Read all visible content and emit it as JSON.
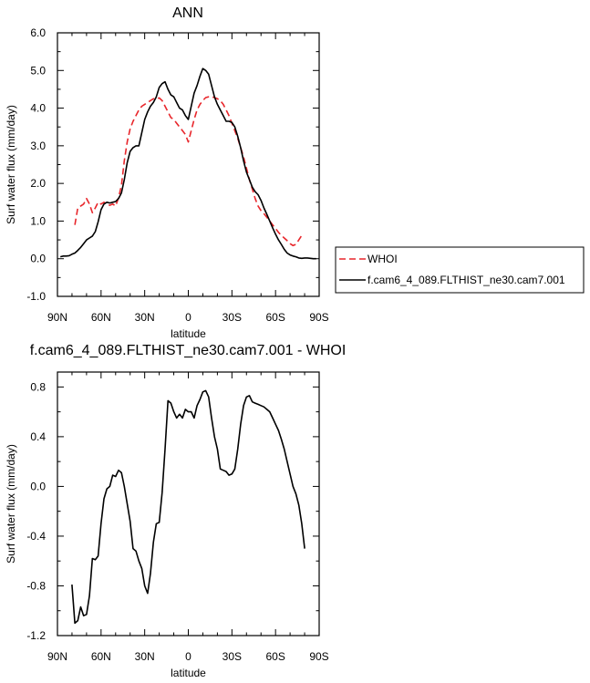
{
  "chart_data": [
    {
      "type": "line",
      "title": "ANN",
      "xlabel": "latitude",
      "ylabel": "Surf water flux (mm/day)",
      "xlim": [
        90,
        -90
      ],
      "ylim": [
        -1.0,
        6.0
      ],
      "x_ticks": [
        90,
        60,
        30,
        0,
        -30,
        -60,
        -90
      ],
      "x_tick_labels": [
        "90N",
        "60N",
        "30N",
        "0",
        "30S",
        "60S",
        "90S"
      ],
      "y_ticks": [
        -1,
        0,
        1,
        2,
        3,
        4,
        5,
        6
      ],
      "y_tick_labels": [
        "-1.0",
        "0.0",
        "1.0",
        "2.0",
        "3.0",
        "4.0",
        "5.0",
        "6.0"
      ],
      "grid": false,
      "legend_position": "outside-right",
      "series": [
        {
          "name": "WHOI",
          "color": "#e8262b",
          "dash": "dashed",
          "x": [
            78,
            76,
            74,
            72,
            70,
            68,
            66,
            64,
            62,
            60,
            58,
            56,
            54,
            52,
            50,
            48,
            46,
            44,
            42,
            40,
            38,
            36,
            34,
            32,
            30,
            28,
            26,
            24,
            22,
            20,
            18,
            16,
            14,
            12,
            10,
            8,
            6,
            4,
            2,
            0,
            -2,
            -4,
            -6,
            -8,
            -10,
            -12,
            -14,
            -16,
            -18,
            -20,
            -22,
            -24,
            -26,
            -28,
            -30,
            -32,
            -34,
            -36,
            -38,
            -40,
            -42,
            -44,
            -46,
            -48,
            -50,
            -52,
            -54,
            -56,
            -58,
            -60,
            -62,
            -64,
            -66,
            -68,
            -70,
            -72,
            -74,
            -76,
            -78
          ],
          "y": [
            0.9,
            1.35,
            1.4,
            1.45,
            1.6,
            1.45,
            1.22,
            1.35,
            1.5,
            1.45,
            1.5,
            1.45,
            1.42,
            1.45,
            1.4,
            1.62,
            1.95,
            2.6,
            3.1,
            3.45,
            3.65,
            3.8,
            3.95,
            4.05,
            4.1,
            4.15,
            4.2,
            4.25,
            4.25,
            4.27,
            4.2,
            4.05,
            3.9,
            3.75,
            3.7,
            3.6,
            3.5,
            3.4,
            3.3,
            3.1,
            3.4,
            3.7,
            3.95,
            4.1,
            4.2,
            4.28,
            4.3,
            4.3,
            4.28,
            4.25,
            4.2,
            4.1,
            3.95,
            3.8,
            3.6,
            3.4,
            3.2,
            2.95,
            2.7,
            2.4,
            2.1,
            1.85,
            1.6,
            1.4,
            1.28,
            1.2,
            1.1,
            1.0,
            0.9,
            0.8,
            0.7,
            0.62,
            0.55,
            0.48,
            0.4,
            0.35,
            0.38,
            0.5,
            0.62
          ]
        },
        {
          "name": "f.cam6_4_089.FLTHIST_ne30.cam7.001",
          "color": "#000000",
          "dash": "solid",
          "x": [
            88,
            86,
            84,
            82,
            80,
            78,
            76,
            74,
            72,
            70,
            68,
            66,
            64,
            62,
            60,
            58,
            56,
            54,
            52,
            50,
            48,
            46,
            44,
            42,
            40,
            38,
            36,
            34,
            32,
            30,
            28,
            26,
            24,
            22,
            20,
            18,
            16,
            14,
            12,
            10,
            8,
            6,
            4,
            2,
            0,
            -2,
            -4,
            -6,
            -8,
            -10,
            -12,
            -14,
            -16,
            -18,
            -20,
            -22,
            -24,
            -26,
            -28,
            -30,
            -32,
            -34,
            -36,
            -38,
            -40,
            -42,
            -44,
            -46,
            -48,
            -50,
            -52,
            -54,
            -56,
            -58,
            -60,
            -62,
            -64,
            -66,
            -68,
            -70,
            -72,
            -74,
            -76,
            -78,
            -80,
            -82,
            -84,
            -86,
            -88
          ],
          "y": [
            0.05,
            0.07,
            0.07,
            0.08,
            0.12,
            0.15,
            0.22,
            0.3,
            0.4,
            0.5,
            0.55,
            0.6,
            0.72,
            0.98,
            1.3,
            1.45,
            1.5,
            1.48,
            1.5,
            1.52,
            1.6,
            1.75,
            2.1,
            2.55,
            2.85,
            2.95,
            3.0,
            3.0,
            3.35,
            3.7,
            3.9,
            4.05,
            4.15,
            4.3,
            4.55,
            4.65,
            4.7,
            4.5,
            4.35,
            4.3,
            4.15,
            4.0,
            3.95,
            3.8,
            3.7,
            4.05,
            4.4,
            4.6,
            4.85,
            5.05,
            5.0,
            4.9,
            4.6,
            4.3,
            4.1,
            3.95,
            3.8,
            3.65,
            3.65,
            3.62,
            3.5,
            3.25,
            2.95,
            2.6,
            2.3,
            2.1,
            1.9,
            1.78,
            1.7,
            1.55,
            1.35,
            1.18,
            1.0,
            0.82,
            0.65,
            0.5,
            0.38,
            0.25,
            0.15,
            0.1,
            0.07,
            0.05,
            0.02,
            0.01,
            0.02,
            0.02,
            0.01,
            0.0,
            0.0
          ]
        }
      ]
    },
    {
      "type": "line",
      "title": "f.cam6_4_089.FLTHIST_ne30.cam7.001 - WHOI",
      "xlabel": "latitude",
      "ylabel": "Surf water flux (mm/day)",
      "xlim": [
        90,
        -90
      ],
      "ylim": [
        -1.2,
        0.92
      ],
      "x_ticks": [
        90,
        60,
        30,
        0,
        -30,
        -60,
        -90
      ],
      "x_tick_labels": [
        "90N",
        "60N",
        "30N",
        "0",
        "30S",
        "60S",
        "90S"
      ],
      "y_ticks": [
        -1.2,
        -0.8,
        -0.4,
        0.0,
        0.4,
        0.8
      ],
      "y_tick_labels": [
        "-1.2",
        "-0.8",
        "-0.4",
        "0.0",
        "0.4",
        "0.8"
      ],
      "grid": false,
      "series": [
        {
          "color": "#000000",
          "dash": "solid",
          "x": [
            80,
            78,
            76,
            74,
            72,
            70,
            68,
            66,
            64,
            62,
            60,
            58,
            56,
            54,
            52,
            50,
            48,
            46,
            44,
            42,
            40,
            38,
            36,
            34,
            32,
            30,
            28,
            26,
            24,
            22,
            20,
            18,
            16,
            14,
            12,
            10,
            8,
            6,
            4,
            2,
            0,
            -2,
            -4,
            -6,
            -8,
            -10,
            -12,
            -14,
            -16,
            -18,
            -20,
            -22,
            -24,
            -26,
            -28,
            -30,
            -32,
            -34,
            -36,
            -38,
            -40,
            -42,
            -44,
            -46,
            -48,
            -50,
            -52,
            -54,
            -56,
            -58,
            -60,
            -62,
            -64,
            -66,
            -68,
            -70,
            -72,
            -74,
            -76,
            -78,
            -80
          ],
          "y": [
            -0.79,
            -1.1,
            -1.08,
            -0.97,
            -1.04,
            -1.03,
            -0.88,
            -0.58,
            -0.59,
            -0.56,
            -0.3,
            -0.1,
            -0.02,
            0.0,
            0.09,
            0.08,
            0.13,
            0.11,
            0.0,
            -0.14,
            -0.28,
            -0.5,
            -0.52,
            -0.6,
            -0.66,
            -0.8,
            -0.86,
            -0.7,
            -0.45,
            -0.3,
            -0.29,
            -0.05,
            0.3,
            0.69,
            0.67,
            0.6,
            0.55,
            0.58,
            0.55,
            0.62,
            0.6,
            0.6,
            0.55,
            0.65,
            0.7,
            0.76,
            0.77,
            0.72,
            0.55,
            0.4,
            0.3,
            0.14,
            0.13,
            0.12,
            0.09,
            0.1,
            0.14,
            0.3,
            0.5,
            0.65,
            0.72,
            0.73,
            0.68,
            0.67,
            0.66,
            0.65,
            0.64,
            0.62,
            0.6,
            0.55,
            0.5,
            0.45,
            0.38,
            0.3,
            0.2,
            0.1,
            0.0,
            -0.06,
            -0.15,
            -0.3,
            -0.5
          ]
        }
      ]
    }
  ]
}
